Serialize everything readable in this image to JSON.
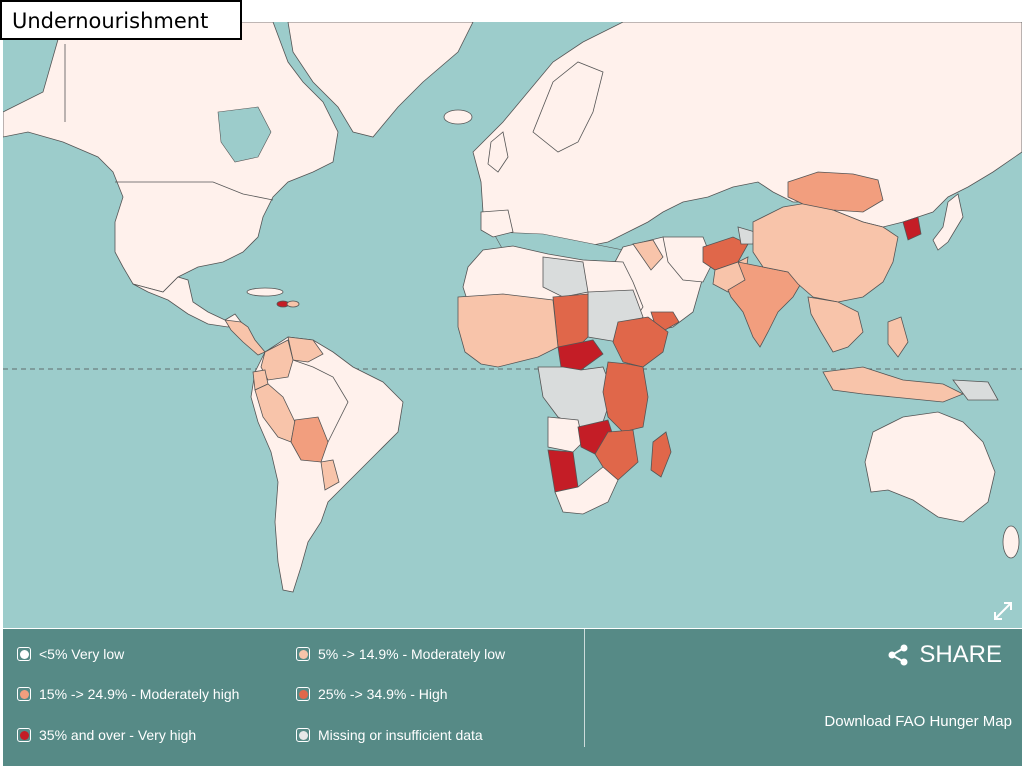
{
  "title": "Undernourishment",
  "colors": {
    "ocean": "#9ccccb",
    "very_low": "#fff1ec",
    "moderately_low": "#f8c4aa",
    "moderately_high": "#f29e7e",
    "high": "#e0674a",
    "very_high": "#c41d26",
    "missing": "#d9dcdc",
    "panel": "#568a86"
  },
  "legend": {
    "items": [
      {
        "label": "<5% Very low",
        "color": "#ffffff"
      },
      {
        "label": "5% -> 14.9% - Moderately low",
        "color": "#f8c4aa"
      },
      {
        "label": "15% -> 24.9% - Moderately high",
        "color": "#f29e7e"
      },
      {
        "label": "25% -> 34.9% - High",
        "color": "#e0674a"
      },
      {
        "label": "35% and over - Very high",
        "color": "#c41d26"
      },
      {
        "label": "Missing or insufficient data",
        "color": "#e6e8e8"
      }
    ]
  },
  "share": {
    "label": "SHARE",
    "icon": "share-icon"
  },
  "download": {
    "label": "Download FAO Hunger Map"
  },
  "expand": {
    "icon": "expand-icon"
  }
}
